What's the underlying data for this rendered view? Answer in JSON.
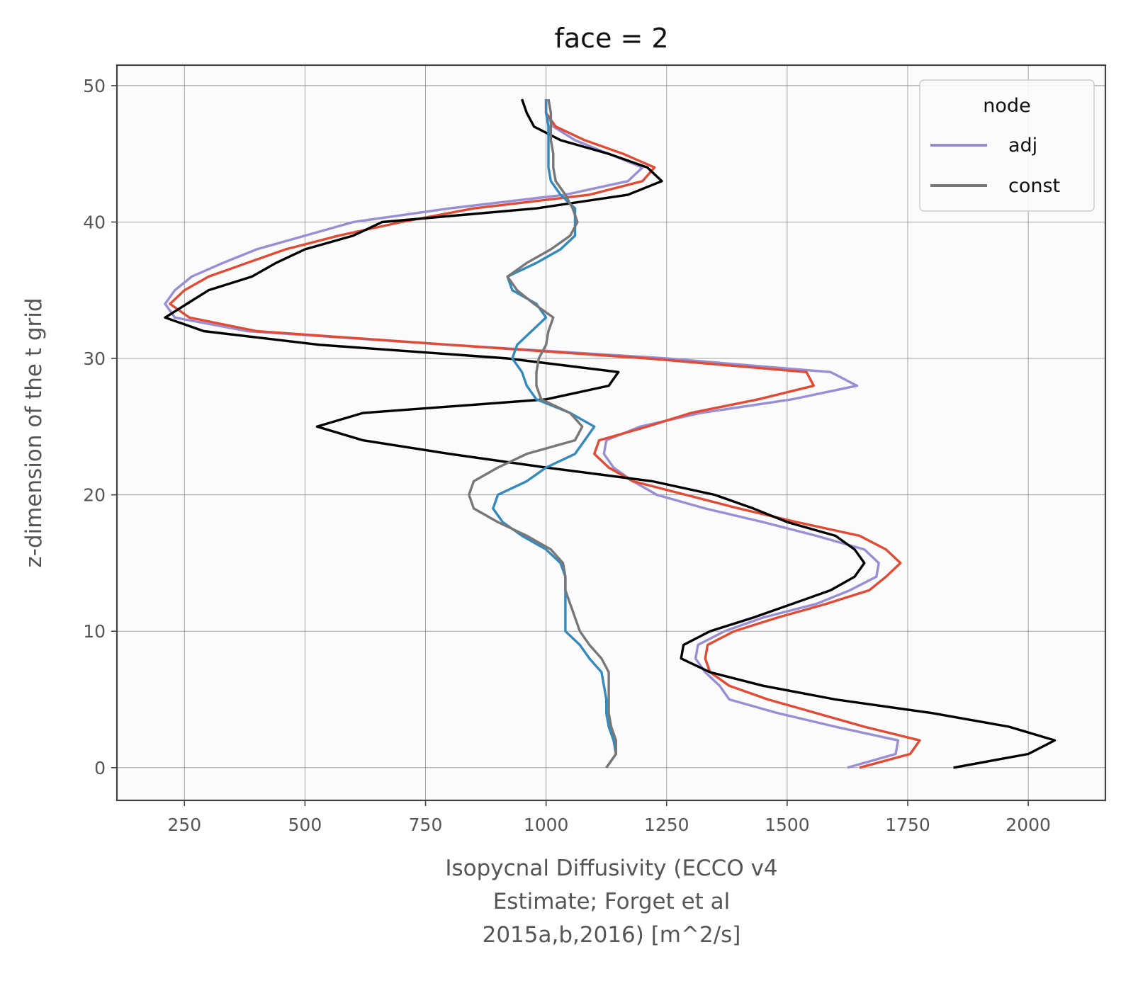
{
  "chart_data": {
    "type": "line",
    "title": "face = 2",
    "xlabel_lines": [
      "Isopycnal Diffusivity (ECCO v4",
      "Estimate; Forget et al",
      "2015a,b,2016) [m^2/s]"
    ],
    "ylabel": "z-dimension of the t grid",
    "xlim": [
      110,
      2160
    ],
    "ylim": [
      -2.4,
      51.5
    ],
    "xticks": [
      250,
      500,
      750,
      1000,
      1250,
      1500,
      1750,
      2000
    ],
    "yticks": [
      0,
      10,
      20,
      30,
      40,
      50
    ],
    "grid": true,
    "legend": {
      "title": "node",
      "placement": "top-right",
      "entries": [
        {
          "label": "adj",
          "color": "#988ed5"
        },
        {
          "label": "const",
          "color": "#777777"
        }
      ]
    },
    "series": [
      {
        "color": "#988ed5",
        "points": [
          [
            1625,
            0
          ],
          [
            1725,
            1
          ],
          [
            1730,
            2
          ],
          [
            1600,
            3
          ],
          [
            1480,
            4
          ],
          [
            1380,
            5
          ],
          [
            1360,
            6
          ],
          [
            1330,
            7
          ],
          [
            1310,
            8
          ],
          [
            1315,
            9
          ],
          [
            1370,
            10
          ],
          [
            1450,
            11
          ],
          [
            1560,
            12
          ],
          [
            1630,
            13
          ],
          [
            1685,
            14
          ],
          [
            1690,
            15
          ],
          [
            1660,
            16
          ],
          [
            1560,
            17
          ],
          [
            1450,
            18
          ],
          [
            1330,
            19
          ],
          [
            1230,
            20
          ],
          [
            1180,
            21
          ],
          [
            1140,
            22
          ],
          [
            1120,
            23
          ],
          [
            1125,
            24
          ],
          [
            1195,
            25
          ],
          [
            1320,
            26
          ],
          [
            1510,
            27
          ],
          [
            1645,
            28
          ],
          [
            1590,
            29
          ],
          [
            1250,
            30
          ],
          [
            800,
            31
          ],
          [
            380,
            32
          ],
          [
            230,
            33
          ],
          [
            210,
            34
          ],
          [
            230,
            35
          ],
          [
            265,
            36
          ],
          [
            330,
            37
          ],
          [
            400,
            38
          ],
          [
            500,
            39
          ],
          [
            600,
            40
          ],
          [
            800,
            41
          ],
          [
            1040,
            42
          ],
          [
            1170,
            43
          ],
          [
            1200,
            44
          ],
          [
            1130,
            45
          ],
          [
            1060,
            46
          ],
          [
            1015,
            47
          ],
          [
            1000,
            48
          ],
          [
            1000,
            49
          ]
        ]
      },
      {
        "color": "#e24a33",
        "points": [
          [
            1650,
            0
          ],
          [
            1755,
            1
          ],
          [
            1775,
            2
          ],
          [
            1660,
            3
          ],
          [
            1560,
            4
          ],
          [
            1460,
            5
          ],
          [
            1380,
            6
          ],
          [
            1340,
            7
          ],
          [
            1330,
            8
          ],
          [
            1335,
            9
          ],
          [
            1390,
            10
          ],
          [
            1480,
            11
          ],
          [
            1580,
            12
          ],
          [
            1670,
            13
          ],
          [
            1705,
            14
          ],
          [
            1735,
            15
          ],
          [
            1705,
            16
          ],
          [
            1650,
            17
          ],
          [
            1520,
            18
          ],
          [
            1400,
            19
          ],
          [
            1290,
            20
          ],
          [
            1180,
            21
          ],
          [
            1130,
            22
          ],
          [
            1100,
            23
          ],
          [
            1110,
            24
          ],
          [
            1210,
            25
          ],
          [
            1300,
            26
          ],
          [
            1440,
            27
          ],
          [
            1555,
            28
          ],
          [
            1540,
            29
          ],
          [
            1210,
            30
          ],
          [
            800,
            31
          ],
          [
            400,
            32
          ],
          [
            260,
            33
          ],
          [
            220,
            34
          ],
          [
            250,
            35
          ],
          [
            300,
            36
          ],
          [
            380,
            37
          ],
          [
            460,
            38
          ],
          [
            570,
            39
          ],
          [
            700,
            40
          ],
          [
            850,
            41
          ],
          [
            1090,
            42
          ],
          [
            1200,
            43
          ],
          [
            1225,
            44
          ],
          [
            1160,
            45
          ],
          [
            1080,
            46
          ],
          [
            1020,
            47
          ],
          [
            1000,
            48
          ],
          [
            1000,
            49
          ]
        ]
      },
      {
        "color": "#000000",
        "points": [
          [
            1845,
            0
          ],
          [
            2000,
            1
          ],
          [
            2055,
            2
          ],
          [
            1960,
            3
          ],
          [
            1800,
            4
          ],
          [
            1600,
            5
          ],
          [
            1450,
            6
          ],
          [
            1340,
            7
          ],
          [
            1280,
            8
          ],
          [
            1285,
            9
          ],
          [
            1340,
            10
          ],
          [
            1430,
            11
          ],
          [
            1510,
            12
          ],
          [
            1590,
            13
          ],
          [
            1640,
            14
          ],
          [
            1660,
            15
          ],
          [
            1640,
            16
          ],
          [
            1600,
            17
          ],
          [
            1500,
            18
          ],
          [
            1430,
            19
          ],
          [
            1350,
            20
          ],
          [
            1220,
            21
          ],
          [
            1000,
            22
          ],
          [
            800,
            23
          ],
          [
            620,
            24
          ],
          [
            525,
            25
          ],
          [
            620,
            26
          ],
          [
            1000,
            27
          ],
          [
            1130,
            28
          ],
          [
            1150,
            29
          ],
          [
            920,
            30
          ],
          [
            530,
            31
          ],
          [
            290,
            32
          ],
          [
            210,
            33
          ],
          [
            255,
            34
          ],
          [
            300,
            35
          ],
          [
            390,
            36
          ],
          [
            440,
            37
          ],
          [
            500,
            38
          ],
          [
            600,
            39
          ],
          [
            660,
            40
          ],
          [
            980,
            41
          ],
          [
            1170,
            42
          ],
          [
            1240,
            43
          ],
          [
            1210,
            44
          ],
          [
            1130,
            45
          ],
          [
            1030,
            46
          ],
          [
            975,
            47
          ],
          [
            960,
            48
          ],
          [
            950,
            49
          ]
        ]
      },
      {
        "color": "#348abd",
        "points": [
          [
            1125,
            0
          ],
          [
            1145,
            1
          ],
          [
            1140,
            2
          ],
          [
            1130,
            3
          ],
          [
            1125,
            4
          ],
          [
            1125,
            5
          ],
          [
            1120,
            6
          ],
          [
            1115,
            7
          ],
          [
            1090,
            8
          ],
          [
            1070,
            9
          ],
          [
            1040,
            10
          ],
          [
            1040,
            11
          ],
          [
            1040,
            12
          ],
          [
            1040,
            13
          ],
          [
            1040,
            14
          ],
          [
            1030,
            15
          ],
          [
            1000,
            16
          ],
          [
            950,
            17
          ],
          [
            910,
            18
          ],
          [
            890,
            19
          ],
          [
            900,
            20
          ],
          [
            960,
            21
          ],
          [
            1000,
            22
          ],
          [
            1060,
            23
          ],
          [
            1080,
            24
          ],
          [
            1100,
            25
          ],
          [
            1050,
            26
          ],
          [
            980,
            27
          ],
          [
            960,
            28
          ],
          [
            950,
            29
          ],
          [
            930,
            30
          ],
          [
            940,
            31
          ],
          [
            970,
            32
          ],
          [
            1000,
            33
          ],
          [
            980,
            34
          ],
          [
            930,
            35
          ],
          [
            920,
            36
          ],
          [
            980,
            37
          ],
          [
            1030,
            38
          ],
          [
            1060,
            39
          ],
          [
            1060,
            40
          ],
          [
            1060,
            41
          ],
          [
            1030,
            42
          ],
          [
            1010,
            43
          ],
          [
            1005,
            44
          ],
          [
            1005,
            45
          ],
          [
            1005,
            46
          ],
          [
            1005,
            47
          ],
          [
            1000,
            48
          ],
          [
            1000,
            49
          ]
        ]
      },
      {
        "color": "#777777",
        "points": [
          [
            1125,
            0
          ],
          [
            1145,
            1
          ],
          [
            1145,
            2
          ],
          [
            1135,
            3
          ],
          [
            1130,
            4
          ],
          [
            1130,
            5
          ],
          [
            1130,
            6
          ],
          [
            1130,
            7
          ],
          [
            1115,
            8
          ],
          [
            1090,
            9
          ],
          [
            1070,
            10
          ],
          [
            1060,
            11
          ],
          [
            1050,
            12
          ],
          [
            1040,
            13
          ],
          [
            1040,
            14
          ],
          [
            1035,
            15
          ],
          [
            1010,
            16
          ],
          [
            960,
            17
          ],
          [
            900,
            18
          ],
          [
            850,
            19
          ],
          [
            840,
            20
          ],
          [
            850,
            21
          ],
          [
            900,
            22
          ],
          [
            960,
            23
          ],
          [
            1060,
            24
          ],
          [
            1075,
            25
          ],
          [
            1050,
            26
          ],
          [
            990,
            27
          ],
          [
            980,
            28
          ],
          [
            980,
            29
          ],
          [
            985,
            30
          ],
          [
            1000,
            31
          ],
          [
            1005,
            32
          ],
          [
            1015,
            33
          ],
          [
            975,
            34
          ],
          [
            940,
            35
          ],
          [
            920,
            36
          ],
          [
            960,
            37
          ],
          [
            1010,
            38
          ],
          [
            1050,
            39
          ],
          [
            1065,
            40
          ],
          [
            1055,
            41
          ],
          [
            1040,
            42
          ],
          [
            1020,
            43
          ],
          [
            1015,
            44
          ],
          [
            1015,
            45
          ],
          [
            1010,
            46
          ],
          [
            1010,
            47
          ],
          [
            1010,
            48
          ],
          [
            1005,
            49
          ]
        ]
      }
    ]
  }
}
